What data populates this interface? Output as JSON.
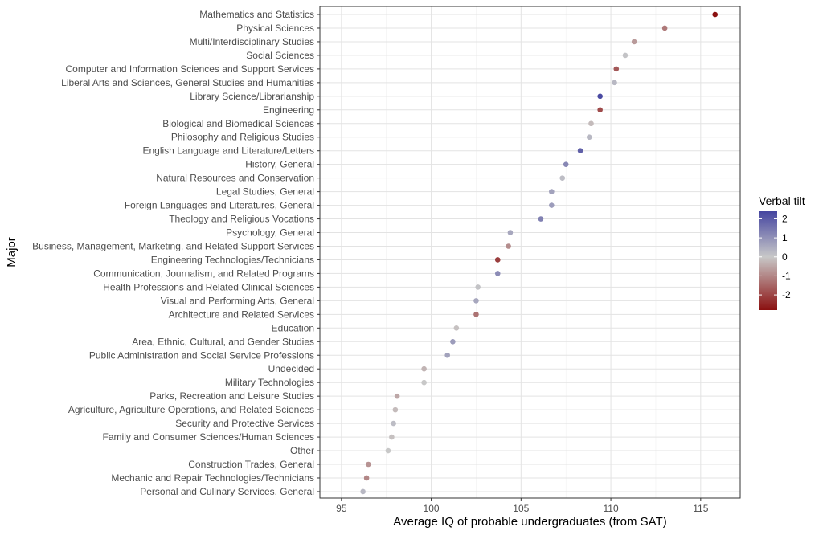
{
  "chart_data": {
    "type": "scatter",
    "xlabel": "Average IQ of probable undergraduates (from SAT)",
    "ylabel": "Major",
    "xlim": [
      93.8,
      117.2
    ],
    "xticks": [
      95,
      100,
      105,
      110,
      115
    ],
    "grid": true,
    "legend": {
      "title": "Verbal tilt",
      "placement": "right",
      "range": [
        -2.8,
        2.4
      ],
      "ticks": [
        2,
        1,
        0,
        -1,
        -2
      ],
      "colors": {
        "high": "#4545a0",
        "mid": "#c8c8c8",
        "low": "#8b1010"
      }
    },
    "points": [
      {
        "major": "Mathematics and Statistics",
        "x": 115.8,
        "tilt": -2.8
      },
      {
        "major": "Physical Sciences",
        "x": 113.0,
        "tilt": -1.2
      },
      {
        "major": "Multi/Interdisciplinary Studies",
        "x": 111.3,
        "tilt": -0.7
      },
      {
        "major": "Social Sciences",
        "x": 110.8,
        "tilt": 0.1
      },
      {
        "major": "Computer and Information Sciences and Support Services",
        "x": 110.3,
        "tilt": -1.7
      },
      {
        "major": "Liberal Arts and Sciences, General Studies and Humanities",
        "x": 110.2,
        "tilt": 0.3
      },
      {
        "major": "Library Science/Librarianship",
        "x": 109.4,
        "tilt": 2.3
      },
      {
        "major": "Engineering",
        "x": 109.4,
        "tilt": -1.9
      },
      {
        "major": "Biological and Biomedical Sciences",
        "x": 108.9,
        "tilt": -0.2
      },
      {
        "major": "Philosophy and Religious Studies",
        "x": 108.8,
        "tilt": 0.3
      },
      {
        "major": "English Language and Literature/Letters",
        "x": 108.3,
        "tilt": 1.9
      },
      {
        "major": "History, General",
        "x": 107.5,
        "tilt": 1.2
      },
      {
        "major": "Natural Resources and Conservation",
        "x": 107.3,
        "tilt": 0.2
      },
      {
        "major": "Legal Studies, General",
        "x": 106.7,
        "tilt": 0.7
      },
      {
        "major": "Foreign Languages and Literatures, General",
        "x": 106.7,
        "tilt": 0.8
      },
      {
        "major": "Theology and Religious Vocations",
        "x": 106.1,
        "tilt": 1.3
      },
      {
        "major": "Psychology, General",
        "x": 104.4,
        "tilt": 0.6
      },
      {
        "major": "Business, Management, Marketing, and Related Support Services",
        "x": 104.3,
        "tilt": -0.9
      },
      {
        "major": "Engineering Technologies/Technicians",
        "x": 103.7,
        "tilt": -2.1
      },
      {
        "major": "Communication, Journalism, and Related Programs",
        "x": 103.7,
        "tilt": 1.1
      },
      {
        "major": "Health Professions and Related Clinical Sciences",
        "x": 102.6,
        "tilt": 0.1
      },
      {
        "major": "Visual and Performing Arts, General",
        "x": 102.5,
        "tilt": 0.6
      },
      {
        "major": "Architecture and Related Services",
        "x": 102.5,
        "tilt": -1.3
      },
      {
        "major": "Education",
        "x": 101.4,
        "tilt": -0.1
      },
      {
        "major": "Area, Ethnic, Cultural, and Gender Studies",
        "x": 101.2,
        "tilt": 0.8
      },
      {
        "major": "Public Administration and Social Service Professions",
        "x": 100.9,
        "tilt": 0.7
      },
      {
        "major": "Undecided",
        "x": 99.6,
        "tilt": -0.3
      },
      {
        "major": "Military Technologies",
        "x": 99.6,
        "tilt": 0.0
      },
      {
        "major": "Parks, Recreation and Leisure Studies",
        "x": 98.1,
        "tilt": -0.5
      },
      {
        "major": "Agriculture, Agriculture Operations, and Related Sciences",
        "x": 98.0,
        "tilt": -0.2
      },
      {
        "major": "Security and Protective Services",
        "x": 97.9,
        "tilt": 0.2
      },
      {
        "major": "Family and Consumer Sciences/Human Sciences",
        "x": 97.8,
        "tilt": -0.1
      },
      {
        "major": "Other",
        "x": 97.6,
        "tilt": 0.0
      },
      {
        "major": "Construction Trades, General",
        "x": 96.5,
        "tilt": -0.8
      },
      {
        "major": "Mechanic and Repair Technologies/Technicians",
        "x": 96.4,
        "tilt": -1.0
      },
      {
        "major": "Personal and Culinary Services, General",
        "x": 96.2,
        "tilt": 0.3
      }
    ]
  }
}
